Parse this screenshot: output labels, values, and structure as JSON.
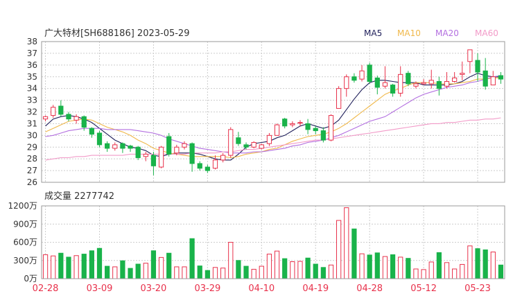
{
  "title": "广大特材[SH688186] 2023-05-29",
  "volume_label": "成交量 2277742",
  "legend": [
    {
      "label": "MA5",
      "color": "#1f1f5a"
    },
    {
      "label": "MA10",
      "color": "#f0b84a"
    },
    {
      "label": "MA20",
      "color": "#b36fe0"
    },
    {
      "label": "MA60",
      "color": "#f29ac8"
    }
  ],
  "colors": {
    "up": "#e8304a",
    "down": "#19b34a",
    "grid": "#cccccc"
  },
  "chart_data": [
    {
      "type": "candlestick",
      "title": "广大特材[SH688186] 2023-05-29",
      "ylim": [
        26,
        38
      ],
      "y_ticks": [
        "26",
        "27",
        "28",
        "29",
        "30",
        "31",
        "32",
        "33",
        "34",
        "35",
        "36",
        "37",
        "38"
      ],
      "x_ticks": [
        {
          "index": 0,
          "label": "02-28"
        },
        {
          "index": 7,
          "label": "03-09"
        },
        {
          "index": 14,
          "label": "03-20"
        },
        {
          "index": 21,
          "label": "03-29"
        },
        {
          "index": 28,
          "label": "04-10"
        },
        {
          "index": 35,
          "label": "04-19"
        },
        {
          "index": 42,
          "label": "04-28"
        },
        {
          "index": 49,
          "label": "05-12"
        },
        {
          "index": 56,
          "label": "05-23"
        }
      ],
      "candles": [
        [
          31.4,
          31.6,
          31.2,
          31.7
        ],
        [
          31.7,
          32.4,
          31.5,
          32.6
        ],
        [
          32.5,
          31.8,
          31.6,
          33.0
        ],
        [
          31.8,
          31.4,
          31.2,
          32.0
        ],
        [
          31.3,
          31.6,
          31.0,
          31.8
        ],
        [
          31.6,
          30.7,
          30.4,
          31.7
        ],
        [
          30.6,
          30.1,
          29.8,
          30.7
        ],
        [
          30.2,
          29.2,
          29.0,
          30.4
        ],
        [
          29.3,
          28.9,
          28.6,
          29.5
        ],
        [
          28.9,
          29.2,
          28.7,
          29.4
        ],
        [
          29.3,
          28.9,
          28.5,
          29.4
        ],
        [
          29.1,
          28.9,
          28.6,
          29.2
        ],
        [
          29.0,
          28.1,
          27.9,
          29.1
        ],
        [
          28.2,
          28.4,
          27.8,
          28.6
        ],
        [
          28.3,
          27.4,
          26.6,
          28.6
        ],
        [
          27.3,
          29.0,
          27.2,
          29.1
        ],
        [
          29.9,
          28.4,
          28.2,
          30.2
        ],
        [
          28.5,
          29.0,
          28.3,
          29.2
        ],
        [
          29.0,
          29.3,
          28.8,
          29.5
        ],
        [
          29.3,
          27.6,
          26.9,
          29.4
        ],
        [
          27.6,
          27.2,
          27.0,
          27.8
        ],
        [
          27.3,
          27.0,
          26.8,
          27.5
        ],
        [
          27.2,
          27.9,
          27.1,
          28.3
        ],
        [
          27.9,
          28.3,
          27.7,
          28.5
        ],
        [
          28.3,
          30.5,
          28.1,
          30.7
        ],
        [
          29.8,
          29.3,
          29.1,
          30.3
        ],
        [
          29.2,
          29.0,
          28.8,
          29.4
        ],
        [
          29.0,
          29.4,
          28.9,
          29.5
        ],
        [
          28.9,
          29.2,
          28.8,
          29.3
        ],
        [
          29.3,
          30.0,
          29.1,
          30.2
        ],
        [
          30.0,
          30.9,
          30.0,
          31.0
        ],
        [
          31.4,
          30.8,
          30.6,
          31.5
        ],
        [
          30.9,
          31.0,
          30.7,
          31.2
        ],
        [
          31.1,
          31.1,
          30.8,
          31.3
        ],
        [
          31.0,
          30.5,
          30.1,
          31.4
        ],
        [
          30.6,
          30.4,
          30.1,
          30.8
        ],
        [
          30.4,
          29.6,
          29.4,
          30.7
        ],
        [
          29.6,
          31.7,
          29.5,
          31.8
        ],
        [
          32.3,
          34.0,
          32.3,
          34.2
        ],
        [
          34.0,
          35.0,
          33.3,
          35.2
        ],
        [
          35.0,
          34.7,
          34.5,
          35.3
        ],
        [
          34.8,
          35.5,
          34.6,
          36.0
        ],
        [
          36.0,
          34.6,
          34.4,
          36.2
        ],
        [
          34.9,
          34.1,
          33.5,
          35.1
        ],
        [
          34.2,
          34.5,
          34.0,
          35.9
        ],
        [
          34.3,
          33.6,
          33.3,
          34.4
        ],
        [
          33.6,
          35.2,
          33.3,
          35.9
        ],
        [
          35.3,
          34.4,
          34.2,
          35.5
        ],
        [
          34.2,
          34.4,
          34.0,
          34.6
        ],
        [
          34.4,
          34.5,
          34.3,
          34.8
        ],
        [
          34.4,
          34.7,
          34.0,
          35.6
        ],
        [
          34.6,
          34.0,
          33.4,
          35.0
        ],
        [
          34.2,
          34.6,
          34.0,
          35.4
        ],
        [
          34.6,
          34.9,
          34.5,
          35.4
        ],
        [
          35.2,
          35.3,
          34.7,
          36.3
        ],
        [
          36.3,
          37.3,
          35.3,
          37.3
        ],
        [
          36.4,
          35.4,
          34.6,
          37.0
        ],
        [
          35.5,
          34.2,
          33.9,
          36.6
        ],
        [
          34.3,
          35.0,
          34.3,
          35.5
        ],
        [
          35.1,
          34.8,
          34.4,
          35.4
        ]
      ],
      "series": [
        {
          "name": "MA5",
          "values": [
            30.8,
            31.4,
            31.6,
            31.7,
            31.6,
            31.4,
            31.1,
            30.6,
            30.1,
            29.6,
            29.3,
            29.0,
            28.9,
            28.7,
            28.3,
            28.2,
            28.4,
            28.5,
            28.5,
            28.5,
            28.4,
            28.2,
            28.0,
            27.9,
            27.9,
            28.4,
            29.0,
            29.3,
            29.4,
            29.5,
            29.8,
            30.0,
            30.4,
            30.8,
            31.0,
            30.8,
            30.6,
            30.8,
            31.3,
            32.2,
            33.1,
            33.9,
            34.5,
            34.7,
            34.7,
            34.6,
            34.5,
            34.5,
            34.5,
            34.3,
            34.3,
            34.3,
            34.3,
            34.4,
            34.6,
            35.0,
            35.3,
            35.1,
            35.0,
            35.0
          ]
        },
        {
          "name": "MA10",
          "values": [
            30.3,
            30.6,
            30.9,
            31.2,
            31.3,
            31.4,
            31.3,
            31.0,
            30.7,
            30.5,
            30.3,
            30.0,
            29.6,
            29.3,
            28.9,
            28.7,
            28.5,
            28.4,
            28.3,
            28.2,
            28.2,
            28.2,
            28.2,
            28.2,
            28.1,
            28.2,
            28.4,
            28.5,
            28.6,
            28.8,
            28.9,
            29.2,
            29.5,
            29.7,
            29.9,
            30.0,
            30.1,
            30.3,
            30.6,
            31.0,
            31.5,
            32.0,
            32.5,
            33.0,
            33.5,
            33.8,
            34.0,
            34.3,
            34.5,
            34.5,
            34.5,
            34.4,
            34.4,
            34.4,
            34.5,
            34.6,
            34.8,
            34.8,
            34.9,
            34.9
          ]
        },
        {
          "name": "MA20",
          "values": [
            29.9,
            30.0,
            30.2,
            30.4,
            30.5,
            30.6,
            30.6,
            30.6,
            30.5,
            30.5,
            30.5,
            30.5,
            30.4,
            30.3,
            30.2,
            30.0,
            29.7,
            29.5,
            29.3,
            29.1,
            28.9,
            28.8,
            28.7,
            28.6,
            28.5,
            28.5,
            28.5,
            28.6,
            28.6,
            28.7,
            28.8,
            28.9,
            29.1,
            29.2,
            29.4,
            29.5,
            29.6,
            29.8,
            30.0,
            30.3,
            30.6,
            30.9,
            31.2,
            31.4,
            31.6,
            32.0,
            32.4,
            32.8,
            33.2,
            33.5,
            33.7,
            33.9,
            34.1,
            34.2,
            34.3,
            34.5,
            34.6,
            34.8,
            35.0,
            35.1
          ]
        },
        {
          "name": "MA60",
          "values": [
            27.9,
            28.0,
            28.1,
            28.1,
            28.2,
            28.2,
            28.3,
            28.3,
            28.3,
            28.3,
            28.3,
            28.4,
            28.4,
            28.4,
            28.4,
            28.4,
            28.4,
            28.4,
            28.4,
            28.5,
            28.5,
            28.5,
            28.5,
            28.6,
            28.6,
            28.7,
            28.8,
            28.8,
            28.9,
            29.0,
            29.1,
            29.2,
            29.3,
            29.4,
            29.5,
            29.6,
            29.6,
            29.7,
            29.8,
            29.9,
            30.0,
            30.1,
            30.2,
            30.3,
            30.4,
            30.5,
            30.6,
            30.7,
            30.8,
            30.9,
            31.0,
            31.0,
            31.1,
            31.1,
            31.2,
            31.3,
            31.3,
            31.4,
            31.4,
            31.5
          ]
        }
      ]
    },
    {
      "type": "bar",
      "title": "成交量 2277742",
      "unit": "万",
      "ylim": [
        0,
        1200
      ],
      "y_ticks": [
        "0万",
        "300万",
        "600万",
        "900万",
        "1200万"
      ],
      "x_ticks": [
        "02-28",
        "03-09",
        "03-20",
        "03-29",
        "04-10",
        "04-19",
        "04-28",
        "05-12",
        "05-23"
      ],
      "values": [
        395,
        375,
        420,
        355,
        380,
        405,
        460,
        500,
        205,
        195,
        295,
        170,
        240,
        255,
        460,
        350,
        420,
        195,
        195,
        660,
        210,
        135,
        185,
        175,
        600,
        300,
        205,
        155,
        205,
        405,
        455,
        330,
        280,
        285,
        340,
        240,
        185,
        225,
        960,
        1170,
        820,
        410,
        390,
        425,
        365,
        395,
        355,
        335,
        160,
        150,
        275,
        430,
        265,
        160,
        235,
        540,
        495,
        475,
        440,
        225
      ]
    }
  ]
}
